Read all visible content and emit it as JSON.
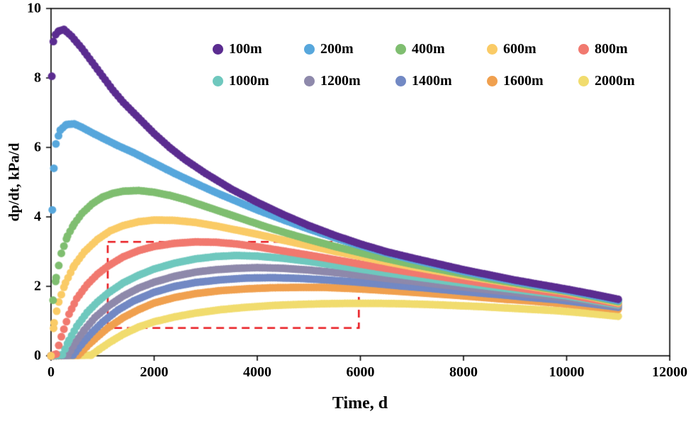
{
  "chart_data": {
    "type": "scatter",
    "title": "",
    "xlabel": "Time, d",
    "ylabel": "dp/dt, kPa/d",
    "xlim": [
      0,
      12000
    ],
    "ylim": [
      0,
      10
    ],
    "x_ticks": [
      0,
      2000,
      4000,
      6000,
      8000,
      10000,
      12000
    ],
    "y_ticks": [
      0,
      2,
      4,
      6,
      8,
      10
    ],
    "grid": false,
    "legend_position": "inside-top-center-two-rows",
    "marker": "filled-circle",
    "annotation": {
      "type": "dashed-rectangle",
      "color": "#e8191f",
      "x": [
        1100,
        5970
      ],
      "y": [
        0.8,
        3.28
      ]
    },
    "series": [
      {
        "name": "100m",
        "color": "#5b2c90",
        "points": [
          [
            15,
            8.05
          ],
          [
            45,
            9.05
          ],
          [
            90,
            9.25
          ],
          [
            150,
            9.35
          ],
          [
            250,
            9.4
          ],
          [
            400,
            9.2
          ],
          [
            600,
            8.85
          ],
          [
            800,
            8.45
          ],
          [
            1000,
            8.05
          ],
          [
            1200,
            7.65
          ],
          [
            1400,
            7.3
          ],
          [
            1600,
            7.0
          ],
          [
            1800,
            6.7
          ],
          [
            2000,
            6.4
          ],
          [
            2300,
            6.0
          ],
          [
            2600,
            5.65
          ],
          [
            3000,
            5.25
          ],
          [
            3500,
            4.8
          ],
          [
            4000,
            4.42
          ],
          [
            4500,
            4.07
          ],
          [
            5000,
            3.75
          ],
          [
            5500,
            3.47
          ],
          [
            6000,
            3.22
          ],
          [
            6500,
            3.0
          ],
          [
            7000,
            2.82
          ],
          [
            7500,
            2.65
          ],
          [
            8000,
            2.48
          ],
          [
            8500,
            2.33
          ],
          [
            9000,
            2.18
          ],
          [
            9500,
            2.05
          ],
          [
            10000,
            1.92
          ],
          [
            10500,
            1.78
          ],
          [
            11000,
            1.63
          ]
        ]
      },
      {
        "name": "200m",
        "color": "#57a7dc",
        "points": [
          [
            25,
            4.2
          ],
          [
            55,
            5.4
          ],
          [
            95,
            6.1
          ],
          [
            180,
            6.5
          ],
          [
            300,
            6.66
          ],
          [
            450,
            6.68
          ],
          [
            600,
            6.58
          ],
          [
            800,
            6.42
          ],
          [
            1000,
            6.27
          ],
          [
            1300,
            6.05
          ],
          [
            1600,
            5.85
          ],
          [
            2000,
            5.55
          ],
          [
            2400,
            5.25
          ],
          [
            2800,
            4.97
          ],
          [
            3200,
            4.7
          ],
          [
            3600,
            4.45
          ],
          [
            4000,
            4.2
          ],
          [
            4500,
            3.92
          ],
          [
            5000,
            3.65
          ],
          [
            5500,
            3.4
          ],
          [
            6000,
            3.17
          ],
          [
            6500,
            2.96
          ],
          [
            7000,
            2.77
          ],
          [
            7500,
            2.6
          ],
          [
            8000,
            2.43
          ],
          [
            8500,
            2.28
          ],
          [
            9000,
            2.14
          ],
          [
            9500,
            2.01
          ],
          [
            10000,
            1.88
          ],
          [
            10500,
            1.74
          ],
          [
            11000,
            1.59
          ]
        ]
      },
      {
        "name": "400m",
        "color": "#7fbe70",
        "points": [
          [
            40,
            1.6
          ],
          [
            100,
            2.25
          ],
          [
            200,
            2.95
          ],
          [
            320,
            3.45
          ],
          [
            450,
            3.8
          ],
          [
            600,
            4.1
          ],
          [
            800,
            4.38
          ],
          [
            1000,
            4.57
          ],
          [
            1200,
            4.68
          ],
          [
            1400,
            4.74
          ],
          [
            1700,
            4.76
          ],
          [
            2000,
            4.71
          ],
          [
            2300,
            4.62
          ],
          [
            2600,
            4.5
          ],
          [
            3000,
            4.3
          ],
          [
            3400,
            4.1
          ],
          [
            3800,
            3.9
          ],
          [
            4200,
            3.7
          ],
          [
            4600,
            3.52
          ],
          [
            5000,
            3.35
          ],
          [
            5500,
            3.15
          ],
          [
            6000,
            2.97
          ],
          [
            6500,
            2.8
          ],
          [
            7000,
            2.64
          ],
          [
            7500,
            2.5
          ],
          [
            8000,
            2.36
          ],
          [
            8500,
            2.22
          ],
          [
            9000,
            2.1
          ],
          [
            9500,
            1.97
          ],
          [
            10000,
            1.86
          ],
          [
            10500,
            1.71
          ],
          [
            11000,
            1.56
          ]
        ]
      },
      {
        "name": "600m",
        "color": "#facb66",
        "points": [
          [
            0,
            0
          ],
          [
            60,
            0.95
          ],
          [
            150,
            1.55
          ],
          [
            280,
            2.1
          ],
          [
            450,
            2.6
          ],
          [
            650,
            3.0
          ],
          [
            900,
            3.35
          ],
          [
            1150,
            3.6
          ],
          [
            1400,
            3.75
          ],
          [
            1700,
            3.86
          ],
          [
            2000,
            3.91
          ],
          [
            2400,
            3.9
          ],
          [
            2800,
            3.84
          ],
          [
            3200,
            3.74
          ],
          [
            3600,
            3.62
          ],
          [
            4000,
            3.5
          ],
          [
            4500,
            3.33
          ],
          [
            5000,
            3.17
          ],
          [
            5500,
            3.01
          ],
          [
            6000,
            2.86
          ],
          [
            6500,
            2.71
          ],
          [
            7000,
            2.57
          ],
          [
            7500,
            2.44
          ],
          [
            8000,
            2.31
          ],
          [
            8500,
            2.19
          ],
          [
            9000,
            2.07
          ],
          [
            9500,
            1.95
          ],
          [
            10000,
            1.84
          ],
          [
            10500,
            1.69
          ],
          [
            11000,
            1.53
          ]
        ]
      },
      {
        "name": "800m",
        "color": "#f1796f",
        "points": [
          [
            0,
            0
          ],
          [
            100,
            0.05
          ],
          [
            200,
            0.55
          ],
          [
            350,
            1.2
          ],
          [
            500,
            1.65
          ],
          [
            700,
            2.05
          ],
          [
            900,
            2.35
          ],
          [
            1100,
            2.58
          ],
          [
            1400,
            2.85
          ],
          [
            1700,
            3.03
          ],
          [
            2000,
            3.15
          ],
          [
            2400,
            3.24
          ],
          [
            2800,
            3.28
          ],
          [
            3200,
            3.27
          ],
          [
            3600,
            3.22
          ],
          [
            4000,
            3.14
          ],
          [
            4500,
            3.02
          ],
          [
            5000,
            2.9
          ],
          [
            5500,
            2.77
          ],
          [
            6000,
            2.64
          ],
          [
            6500,
            2.52
          ],
          [
            7000,
            2.4
          ],
          [
            7500,
            2.29
          ],
          [
            8000,
            2.18
          ],
          [
            8500,
            2.07
          ],
          [
            9000,
            1.97
          ],
          [
            9500,
            1.87
          ],
          [
            10000,
            1.77
          ],
          [
            10500,
            1.63
          ],
          [
            11000,
            1.5
          ]
        ]
      },
      {
        "name": "1000m",
        "color": "#6fc8be",
        "points": [
          [
            0,
            0
          ],
          [
            220,
            0.03
          ],
          [
            350,
            0.45
          ],
          [
            500,
            0.85
          ],
          [
            700,
            1.25
          ],
          [
            900,
            1.55
          ],
          [
            1100,
            1.8
          ],
          [
            1400,
            2.1
          ],
          [
            1700,
            2.32
          ],
          [
            2000,
            2.5
          ],
          [
            2400,
            2.67
          ],
          [
            2800,
            2.79
          ],
          [
            3200,
            2.86
          ],
          [
            3600,
            2.89
          ],
          [
            4000,
            2.87
          ],
          [
            4500,
            2.81
          ],
          [
            5000,
            2.72
          ],
          [
            5500,
            2.61
          ],
          [
            6000,
            2.5
          ],
          [
            6500,
            2.39
          ],
          [
            7000,
            2.29
          ],
          [
            7500,
            2.19
          ],
          [
            8000,
            2.09
          ],
          [
            8500,
            2.0
          ],
          [
            9000,
            1.91
          ],
          [
            9500,
            1.82
          ],
          [
            10000,
            1.73
          ],
          [
            10500,
            1.6
          ],
          [
            11000,
            1.47
          ]
        ]
      },
      {
        "name": "1200m",
        "color": "#8e89ab",
        "points": [
          [
            0,
            0
          ],
          [
            330,
            0.02
          ],
          [
            480,
            0.4
          ],
          [
            650,
            0.75
          ],
          [
            850,
            1.1
          ],
          [
            1100,
            1.42
          ],
          [
            1400,
            1.72
          ],
          [
            1700,
            1.95
          ],
          [
            2000,
            2.12
          ],
          [
            2400,
            2.29
          ],
          [
            2800,
            2.41
          ],
          [
            3200,
            2.48
          ],
          [
            3600,
            2.52
          ],
          [
            4000,
            2.54
          ],
          [
            4500,
            2.52
          ],
          [
            5000,
            2.47
          ],
          [
            5500,
            2.4
          ],
          [
            6000,
            2.32
          ],
          [
            6500,
            2.23
          ],
          [
            7000,
            2.15
          ],
          [
            7500,
            2.06
          ],
          [
            8000,
            1.98
          ],
          [
            8500,
            1.9
          ],
          [
            9000,
            1.82
          ],
          [
            9500,
            1.74
          ],
          [
            10000,
            1.67
          ],
          [
            10500,
            1.55
          ],
          [
            11000,
            1.44
          ]
        ]
      },
      {
        "name": "1400m",
        "color": "#7289c4",
        "points": [
          [
            0,
            0
          ],
          [
            430,
            0.02
          ],
          [
            600,
            0.35
          ],
          [
            800,
            0.68
          ],
          [
            1000,
            0.97
          ],
          [
            1300,
            1.32
          ],
          [
            1600,
            1.58
          ],
          [
            2000,
            1.83
          ],
          [
            2400,
            2.0
          ],
          [
            2800,
            2.11
          ],
          [
            3300,
            2.19
          ],
          [
            3800,
            2.24
          ],
          [
            4300,
            2.25
          ],
          [
            4800,
            2.23
          ],
          [
            5300,
            2.19
          ],
          [
            5800,
            2.14
          ],
          [
            6300,
            2.08
          ],
          [
            6800,
            2.01
          ],
          [
            7300,
            1.95
          ],
          [
            7800,
            1.88
          ],
          [
            8300,
            1.81
          ],
          [
            8800,
            1.75
          ],
          [
            9300,
            1.68
          ],
          [
            9800,
            1.62
          ],
          [
            10300,
            1.53
          ],
          [
            10800,
            1.44
          ],
          [
            11000,
            1.4
          ]
        ]
      },
      {
        "name": "1600m",
        "color": "#f0a04f",
        "points": [
          [
            0,
            0
          ],
          [
            530,
            0.02
          ],
          [
            700,
            0.28
          ],
          [
            900,
            0.55
          ],
          [
            1100,
            0.8
          ],
          [
            1400,
            1.1
          ],
          [
            1700,
            1.33
          ],
          [
            2000,
            1.52
          ],
          [
            2400,
            1.68
          ],
          [
            2800,
            1.79
          ],
          [
            3300,
            1.88
          ],
          [
            3800,
            1.93
          ],
          [
            4300,
            1.96
          ],
          [
            4800,
            1.97
          ],
          [
            5300,
            1.97
          ],
          [
            5800,
            1.94
          ],
          [
            6300,
            1.9
          ],
          [
            6800,
            1.85
          ],
          [
            7300,
            1.8
          ],
          [
            7800,
            1.75
          ],
          [
            8300,
            1.69
          ],
          [
            8800,
            1.63
          ],
          [
            9300,
            1.58
          ],
          [
            9800,
            1.52
          ],
          [
            10300,
            1.45
          ],
          [
            10800,
            1.37
          ],
          [
            11000,
            1.34
          ]
        ]
      },
      {
        "name": "2000m",
        "color": "#f1dc6e",
        "points": [
          [
            0,
            0
          ],
          [
            780,
            0.02
          ],
          [
            950,
            0.2
          ],
          [
            1150,
            0.4
          ],
          [
            1400,
            0.62
          ],
          [
            1700,
            0.83
          ],
          [
            2000,
            0.98
          ],
          [
            2400,
            1.12
          ],
          [
            2800,
            1.23
          ],
          [
            3300,
            1.33
          ],
          [
            3800,
            1.4
          ],
          [
            4300,
            1.45
          ],
          [
            4800,
            1.48
          ],
          [
            5300,
            1.5
          ],
          [
            5800,
            1.51
          ],
          [
            6300,
            1.51
          ],
          [
            6800,
            1.5
          ],
          [
            7300,
            1.48
          ],
          [
            7800,
            1.45
          ],
          [
            8300,
            1.42
          ],
          [
            8800,
            1.38
          ],
          [
            9300,
            1.34
          ],
          [
            9800,
            1.3
          ],
          [
            10300,
            1.24
          ],
          [
            10800,
            1.17
          ],
          [
            11000,
            1.14
          ]
        ]
      }
    ]
  }
}
